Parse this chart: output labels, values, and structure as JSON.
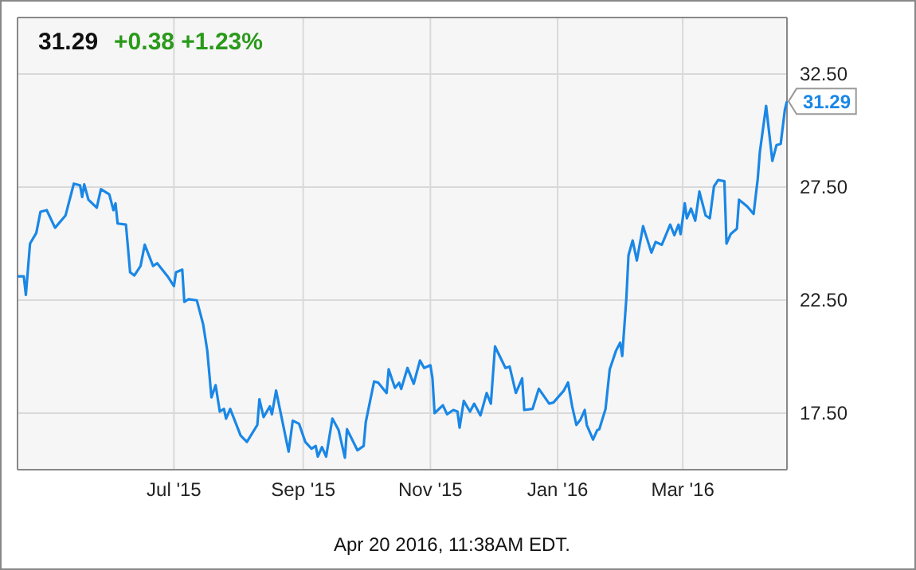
{
  "chart_data": {
    "type": "line",
    "title": "31.29",
    "subtitle": "+0.38 +1.23%",
    "annotations": [
      {
        "text": "31.29",
        "x": "2016-04-20",
        "y": 31.29
      },
      "Apr 20 2016, 11:38AM EDT."
    ],
    "xlim": [
      "2015-04-17",
      "2016-04-20"
    ],
    "xticks": [
      {
        "value": "2015-07-01",
        "label": "Jul '15"
      },
      {
        "value": "2015-09-01",
        "label": "Sep '15"
      },
      {
        "value": "2015-11-01",
        "label": "Nov '15"
      },
      {
        "value": "2016-01-01",
        "label": "Jan '16"
      },
      {
        "value": "2016-03-01",
        "label": "Mar '16"
      }
    ],
    "ylim": [
      15,
      35
    ],
    "yticks": [
      {
        "value": 17.5,
        "label": "17.50"
      },
      {
        "value": 22.5,
        "label": "22.50"
      },
      {
        "value": 27.5,
        "label": "27.50"
      },
      {
        "value": 32.5,
        "label": "32.50"
      }
    ],
    "grid": true,
    "marker": "none",
    "line_style": "solid",
    "x": [
      "2015-04-17",
      "2015-04-20",
      "2015-04-21",
      "2015-04-23",
      "2015-04-26",
      "2015-04-28",
      "2015-05-01",
      "2015-05-05",
      "2015-05-10",
      "2015-05-11",
      "2015-05-14",
      "2015-05-17",
      "2015-05-18",
      "2015-05-19",
      "2015-05-21",
      "2015-05-25",
      "2015-05-27",
      "2015-05-31",
      "2015-06-02",
      "2015-06-03",
      "2015-06-04",
      "2015-06-08",
      "2015-06-10",
      "2015-06-12",
      "2015-06-15",
      "2015-06-17",
      "2015-06-21",
      "2015-06-23",
      "2015-06-28",
      "2015-07-01",
      "2015-07-02",
      "2015-07-05",
      "2015-07-06",
      "2015-07-08",
      "2015-07-12",
      "2015-07-15",
      "2015-07-17",
      "2015-07-19",
      "2015-07-21",
      "2015-07-23",
      "2015-07-25",
      "2015-07-26",
      "2015-07-28",
      "2015-08-02",
      "2015-08-05",
      "2015-08-10",
      "2015-08-11",
      "2015-08-13",
      "2015-08-16",
      "2015-08-17",
      "2015-08-19",
      "2015-08-25",
      "2015-08-27",
      "2015-08-30",
      "2015-09-02",
      "2015-09-05",
      "2015-09-07",
      "2015-09-08",
      "2015-09-10",
      "2015-09-12",
      "2015-09-15",
      "2015-09-18",
      "2015-09-21",
      "2015-09-22",
      "2015-09-27",
      "2015-09-30",
      "2015-10-01",
      "2015-10-05",
      "2015-10-07",
      "2015-10-11",
      "2015-10-12",
      "2015-10-15",
      "2015-10-17",
      "2015-10-18",
      "2015-10-21",
      "2015-10-24",
      "2015-10-27",
      "2015-10-29",
      "2015-11-01",
      "2015-11-02",
      "2015-11-03",
      "2015-11-07",
      "2015-11-09",
      "2015-11-12",
      "2015-11-14",
      "2015-11-15",
      "2015-11-17",
      "2015-11-20",
      "2015-11-22",
      "2015-11-25",
      "2015-11-28",
      "2015-11-30",
      "2015-12-02",
      "2015-12-07",
      "2015-12-09",
      "2015-12-12",
      "2015-12-15",
      "2015-12-16",
      "2015-12-20",
      "2015-12-23",
      "2015-12-28",
      "2015-12-30",
      "2016-01-04",
      "2016-01-06",
      "2016-01-08",
      "2016-01-10",
      "2016-01-12",
      "2016-01-14",
      "2016-01-15",
      "2016-01-18",
      "2016-01-20",
      "2016-01-21",
      "2016-01-24",
      "2016-01-26",
      "2016-01-29",
      "2016-01-31",
      "2016-02-01",
      "2016-02-03",
      "2016-02-04",
      "2016-02-06",
      "2016-02-08",
      "2016-02-11",
      "2016-02-15",
      "2016-02-17",
      "2016-02-20",
      "2016-02-24",
      "2016-02-26",
      "2016-02-28",
      "2016-02-29",
      "2016-03-02",
      "2016-03-03",
      "2016-03-05",
      "2016-03-07",
      "2016-03-09",
      "2016-03-12",
      "2016-03-14",
      "2016-03-16",
      "2016-03-18",
      "2016-03-21",
      "2016-03-22",
      "2016-03-24",
      "2016-03-27",
      "2016-03-28",
      "2016-04-01",
      "2016-04-04",
      "2016-04-06",
      "2016-04-07",
      "2016-04-10",
      "2016-04-13",
      "2016-04-15",
      "2016-04-17",
      "2016-04-19",
      "2016-04-20"
    ],
    "series": [
      {
        "color": "#1a87e6",
        "values": [
          23.55,
          23.55,
          22.73,
          25.0,
          25.47,
          26.41,
          26.48,
          25.7,
          26.24,
          26.59,
          27.65,
          27.58,
          27.06,
          27.62,
          26.94,
          26.59,
          27.41,
          27.18,
          26.48,
          26.78,
          25.89,
          25.84,
          23.73,
          23.59,
          24.01,
          24.95,
          24.01,
          24.13,
          23.55,
          23.12,
          23.73,
          23.85,
          22.42,
          22.54,
          22.49,
          21.44,
          20.26,
          18.2,
          18.74,
          17.57,
          17.69,
          17.26,
          17.69,
          16.51,
          16.23,
          16.98,
          18.11,
          17.33,
          17.8,
          17.45,
          18.5,
          15.8,
          17.17,
          17.03,
          16.23,
          15.93,
          16.05,
          15.58,
          16.0,
          15.58,
          17.26,
          16.75,
          15.53,
          16.79,
          15.86,
          16.05,
          17.1,
          18.9,
          18.85,
          18.39,
          19.44,
          18.62,
          18.85,
          18.57,
          19.5,
          18.8,
          19.83,
          19.5,
          19.62,
          19.04,
          17.5,
          17.85,
          17.45,
          17.64,
          17.57,
          16.86,
          18.04,
          17.57,
          17.92,
          17.4,
          18.39,
          17.92,
          20.45,
          19.5,
          19.56,
          18.39,
          19.04,
          17.64,
          17.69,
          18.58,
          17.92,
          17.97,
          18.5,
          18.86,
          17.8,
          16.98,
          17.22,
          17.64,
          16.98,
          16.33,
          16.75,
          16.79,
          17.69,
          19.44,
          20.26,
          20.62,
          20.03,
          22.61,
          24.48,
          25.14,
          24.25,
          25.77,
          24.6,
          25.07,
          24.95,
          25.84,
          25.37,
          25.84,
          25.42,
          26.78,
          26.12,
          26.55,
          26.01,
          27.3,
          26.24,
          26.12,
          27.53,
          27.81,
          27.76,
          25.0,
          25.42,
          25.66,
          26.94,
          26.64,
          26.31,
          27.88,
          29.05,
          31.09,
          28.66,
          29.36,
          29.41,
          30.93,
          31.29
        ]
      }
    ]
  }
}
